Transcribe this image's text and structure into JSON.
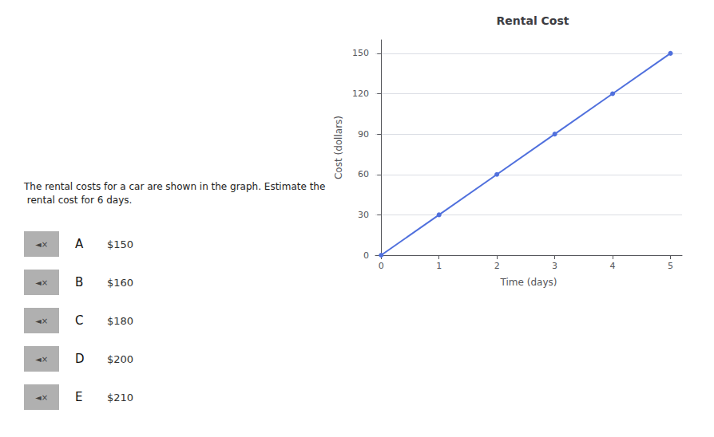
{
  "chart_data": {
    "type": "line",
    "title": "Rental Cost",
    "xlabel": "Time (days)",
    "ylabel": "Cost (dollars)",
    "x": [
      0,
      1,
      2,
      3,
      4,
      5
    ],
    "values": [
      0,
      30,
      60,
      90,
      120,
      150
    ],
    "xlim": [
      -0.1,
      5.2
    ],
    "ylim": [
      0,
      160
    ],
    "xticks": [
      0,
      1,
      2,
      3,
      4,
      5
    ],
    "yticks": [
      0,
      30,
      60,
      90,
      120,
      150
    ],
    "grid": true,
    "marker": "circle",
    "annotations": {
      "question": "The rental costs for a car are shown in the graph. Estimate the rental cost for 6 days.",
      "icon": "◄×",
      "options": [
        {
          "letter": "A",
          "value": "$150"
        },
        {
          "letter": "B",
          "value": "$160"
        },
        {
          "letter": "C",
          "value": "$180"
        },
        {
          "letter": "D",
          "value": "$200"
        },
        {
          "letter": "E",
          "value": "$210"
        }
      ]
    }
  }
}
